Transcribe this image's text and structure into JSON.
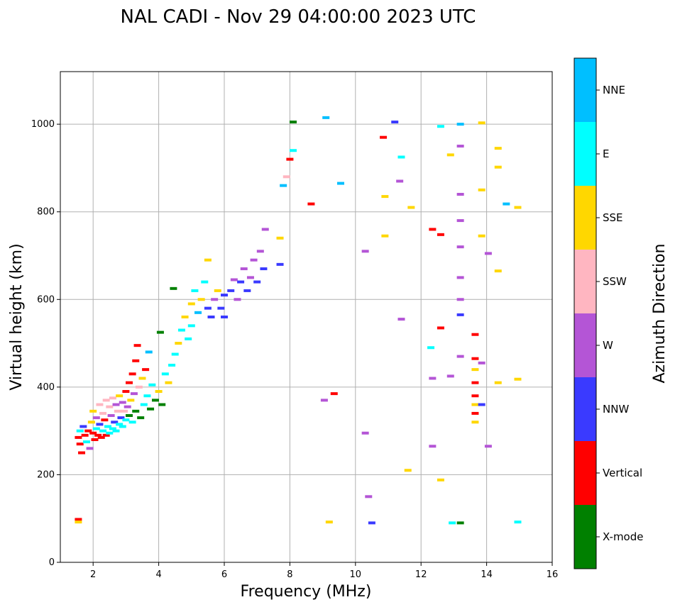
{
  "chart_data": {
    "type": "scatter",
    "title": "NAL CADI - Nov 29 04:00:00 2023 UTC",
    "xlabel": "Frequency (MHz)",
    "ylabel": "Virtual height (km)",
    "xlim": [
      1,
      16
    ],
    "ylim": [
      0,
      1120
    ],
    "xticks": [
      2,
      4,
      6,
      8,
      10,
      12,
      14,
      16
    ],
    "yticks": [
      0,
      200,
      400,
      600,
      800,
      1000
    ],
    "grid": true,
    "colorbar": {
      "title": "Azimuth Direction",
      "categories": [
        {
          "name": "X-mode",
          "color": "#008000"
        },
        {
          "name": "Vertical",
          "color": "#ff0000"
        },
        {
          "name": "NNW",
          "color": "#3a3aff"
        },
        {
          "name": "W",
          "color": "#b455d6"
        },
        {
          "name": "SSW",
          "color": "#ffb6c1"
        },
        {
          "name": "SSE",
          "color": "#ffd700"
        },
        {
          "name": "E",
          "color": "#00ffff"
        },
        {
          "name": "NNE",
          "color": "#00bfff"
        }
      ]
    },
    "points": [
      {
        "x": 1.55,
        "y": 98,
        "c": "Vertical"
      },
      {
        "x": 1.55,
        "y": 92,
        "c": "SSE"
      },
      {
        "x": 1.55,
        "y": 285,
        "c": "Vertical"
      },
      {
        "x": 1.6,
        "y": 300,
        "c": "E"
      },
      {
        "x": 1.6,
        "y": 270,
        "c": "Vertical"
      },
      {
        "x": 1.65,
        "y": 250,
        "c": "Vertical"
      },
      {
        "x": 1.7,
        "y": 310,
        "c": "NNW"
      },
      {
        "x": 1.75,
        "y": 290,
        "c": "Vertical"
      },
      {
        "x": 1.8,
        "y": 275,
        "c": "E"
      },
      {
        "x": 1.85,
        "y": 300,
        "c": "Vertical"
      },
      {
        "x": 1.9,
        "y": 260,
        "c": "W"
      },
      {
        "x": 1.95,
        "y": 320,
        "c": "SSE"
      },
      {
        "x": 2.0,
        "y": 295,
        "c": "Vertical"
      },
      {
        "x": 2.0,
        "y": 345,
        "c": "SSE"
      },
      {
        "x": 2.05,
        "y": 280,
        "c": "Vertical"
      },
      {
        "x": 2.1,
        "y": 330,
        "c": "W"
      },
      {
        "x": 2.1,
        "y": 305,
        "c": "E"
      },
      {
        "x": 2.15,
        "y": 290,
        "c": "Vertical"
      },
      {
        "x": 2.2,
        "y": 360,
        "c": "SSW"
      },
      {
        "x": 2.2,
        "y": 315,
        "c": "NNW"
      },
      {
        "x": 2.25,
        "y": 285,
        "c": "Vertical"
      },
      {
        "x": 2.3,
        "y": 340,
        "c": "SSW"
      },
      {
        "x": 2.3,
        "y": 300,
        "c": "E"
      },
      {
        "x": 2.35,
        "y": 325,
        "c": "Vertical"
      },
      {
        "x": 2.4,
        "y": 370,
        "c": "SSW"
      },
      {
        "x": 2.4,
        "y": 290,
        "c": "Vertical"
      },
      {
        "x": 2.45,
        "y": 310,
        "c": "E"
      },
      {
        "x": 2.5,
        "y": 355,
        "c": "SSW"
      },
      {
        "x": 2.5,
        "y": 295,
        "c": "E"
      },
      {
        "x": 2.55,
        "y": 335,
        "c": "W"
      },
      {
        "x": 2.6,
        "y": 375,
        "c": "SSW"
      },
      {
        "x": 2.6,
        "y": 305,
        "c": "E"
      },
      {
        "x": 2.65,
        "y": 320,
        "c": "NNW"
      },
      {
        "x": 2.7,
        "y": 360,
        "c": "W"
      },
      {
        "x": 2.7,
        "y": 300,
        "c": "E"
      },
      {
        "x": 2.75,
        "y": 345,
        "c": "SSW"
      },
      {
        "x": 2.8,
        "y": 380,
        "c": "SSE"
      },
      {
        "x": 2.8,
        "y": 315,
        "c": "E"
      },
      {
        "x": 2.85,
        "y": 330,
        "c": "NNW"
      },
      {
        "x": 2.9,
        "y": 365,
        "c": "W"
      },
      {
        "x": 2.9,
        "y": 310,
        "c": "E"
      },
      {
        "x": 2.95,
        "y": 345,
        "c": "SSW"
      },
      {
        "x": 3.0,
        "y": 390,
        "c": "Vertical"
      },
      {
        "x": 3.0,
        "y": 325,
        "c": "E"
      },
      {
        "x": 3.05,
        "y": 355,
        "c": "W"
      },
      {
        "x": 3.1,
        "y": 410,
        "c": "Vertical"
      },
      {
        "x": 3.1,
        "y": 335,
        "c": "X-mode"
      },
      {
        "x": 3.15,
        "y": 370,
        "c": "SSE"
      },
      {
        "x": 3.2,
        "y": 430,
        "c": "Vertical"
      },
      {
        "x": 3.2,
        "y": 320,
        "c": "E"
      },
      {
        "x": 3.25,
        "y": 385,
        "c": "W"
      },
      {
        "x": 3.3,
        "y": 460,
        "c": "Vertical"
      },
      {
        "x": 3.3,
        "y": 345,
        "c": "X-mode"
      },
      {
        "x": 3.35,
        "y": 495,
        "c": "Vertical"
      },
      {
        "x": 3.4,
        "y": 400,
        "c": "SSW"
      },
      {
        "x": 3.45,
        "y": 330,
        "c": "X-mode"
      },
      {
        "x": 3.5,
        "y": 420,
        "c": "SSE"
      },
      {
        "x": 3.55,
        "y": 360,
        "c": "E"
      },
      {
        "x": 3.6,
        "y": 440,
        "c": "Vertical"
      },
      {
        "x": 3.65,
        "y": 380,
        "c": "E"
      },
      {
        "x": 3.7,
        "y": 480,
        "c": "NNE"
      },
      {
        "x": 3.75,
        "y": 350,
        "c": "X-mode"
      },
      {
        "x": 3.8,
        "y": 405,
        "c": "E"
      },
      {
        "x": 3.9,
        "y": 370,
        "c": "X-mode"
      },
      {
        "x": 4.0,
        "y": 390,
        "c": "SSE"
      },
      {
        "x": 4.05,
        "y": 525,
        "c": "X-mode"
      },
      {
        "x": 4.1,
        "y": 360,
        "c": "X-mode"
      },
      {
        "x": 4.2,
        "y": 430,
        "c": "E"
      },
      {
        "x": 4.3,
        "y": 410,
        "c": "SSE"
      },
      {
        "x": 4.4,
        "y": 450,
        "c": "E"
      },
      {
        "x": 4.45,
        "y": 625,
        "c": "X-mode"
      },
      {
        "x": 4.5,
        "y": 475,
        "c": "E"
      },
      {
        "x": 4.6,
        "y": 500,
        "c": "SSE"
      },
      {
        "x": 4.7,
        "y": 530,
        "c": "E"
      },
      {
        "x": 4.8,
        "y": 560,
        "c": "SSE"
      },
      {
        "x": 4.9,
        "y": 510,
        "c": "E"
      },
      {
        "x": 5.0,
        "y": 590,
        "c": "SSE"
      },
      {
        "x": 5.0,
        "y": 540,
        "c": "E"
      },
      {
        "x": 5.1,
        "y": 620,
        "c": "E"
      },
      {
        "x": 5.2,
        "y": 570,
        "c": "NNE"
      },
      {
        "x": 5.3,
        "y": 600,
        "c": "SSE"
      },
      {
        "x": 5.4,
        "y": 640,
        "c": "E"
      },
      {
        "x": 5.5,
        "y": 580,
        "c": "NNW"
      },
      {
        "x": 5.5,
        "y": 690,
        "c": "SSE"
      },
      {
        "x": 5.6,
        "y": 560,
        "c": "NNW"
      },
      {
        "x": 5.7,
        "y": 600,
        "c": "W"
      },
      {
        "x": 5.8,
        "y": 620,
        "c": "SSE"
      },
      {
        "x": 5.9,
        "y": 580,
        "c": "NNW"
      },
      {
        "x": 6.0,
        "y": 610,
        "c": "NNW"
      },
      {
        "x": 6.0,
        "y": 560,
        "c": "NNW"
      },
      {
        "x": 6.2,
        "y": 620,
        "c": "NNW"
      },
      {
        "x": 6.3,
        "y": 645,
        "c": "W"
      },
      {
        "x": 6.4,
        "y": 600,
        "c": "W"
      },
      {
        "x": 6.5,
        "y": 640,
        "c": "NNW"
      },
      {
        "x": 6.6,
        "y": 670,
        "c": "W"
      },
      {
        "x": 6.7,
        "y": 620,
        "c": "NNW"
      },
      {
        "x": 6.8,
        "y": 650,
        "c": "W"
      },
      {
        "x": 6.9,
        "y": 690,
        "c": "W"
      },
      {
        "x": 7.0,
        "y": 640,
        "c": "NNW"
      },
      {
        "x": 7.1,
        "y": 710,
        "c": "W"
      },
      {
        "x": 7.2,
        "y": 670,
        "c": "NNW"
      },
      {
        "x": 7.25,
        "y": 760,
        "c": "W"
      },
      {
        "x": 7.7,
        "y": 680,
        "c": "NNW"
      },
      {
        "x": 7.7,
        "y": 740,
        "c": "SSE"
      },
      {
        "x": 7.8,
        "y": 860,
        "c": "NNE"
      },
      {
        "x": 7.9,
        "y": 880,
        "c": "SSW"
      },
      {
        "x": 8.0,
        "y": 920,
        "c": "Vertical"
      },
      {
        "x": 8.1,
        "y": 1005,
        "c": "X-mode"
      },
      {
        "x": 8.1,
        "y": 940,
        "c": "E"
      },
      {
        "x": 8.65,
        "y": 818,
        "c": "Vertical"
      },
      {
        "x": 9.1,
        "y": 1015,
        "c": "NNE"
      },
      {
        "x": 9.05,
        "y": 370,
        "c": "W"
      },
      {
        "x": 9.2,
        "y": 92,
        "c": "SSE"
      },
      {
        "x": 9.35,
        "y": 385,
        "c": "Vertical"
      },
      {
        "x": 9.55,
        "y": 865,
        "c": "NNE"
      },
      {
        "x": 10.3,
        "y": 710,
        "c": "W"
      },
      {
        "x": 10.3,
        "y": 295,
        "c": "W"
      },
      {
        "x": 10.4,
        "y": 150,
        "c": "W"
      },
      {
        "x": 10.5,
        "y": 90,
        "c": "NNW"
      },
      {
        "x": 10.85,
        "y": 970,
        "c": "Vertical"
      },
      {
        "x": 10.9,
        "y": 835,
        "c": "SSE"
      },
      {
        "x": 10.9,
        "y": 745,
        "c": "SSE"
      },
      {
        "x": 11.2,
        "y": 1005,
        "c": "NNW"
      },
      {
        "x": 11.35,
        "y": 870,
        "c": "W"
      },
      {
        "x": 11.4,
        "y": 925,
        "c": "E"
      },
      {
        "x": 11.4,
        "y": 555,
        "c": "W"
      },
      {
        "x": 11.6,
        "y": 210,
        "c": "SSE"
      },
      {
        "x": 11.7,
        "y": 810,
        "c": "SSE"
      },
      {
        "x": 12.3,
        "y": 490,
        "c": "E"
      },
      {
        "x": 12.35,
        "y": 760,
        "c": "Vertical"
      },
      {
        "x": 12.35,
        "y": 420,
        "c": "W"
      },
      {
        "x": 12.35,
        "y": 265,
        "c": "W"
      },
      {
        "x": 12.6,
        "y": 995,
        "c": "E"
      },
      {
        "x": 12.6,
        "y": 748,
        "c": "Vertical"
      },
      {
        "x": 12.6,
        "y": 535,
        "c": "Vertical"
      },
      {
        "x": 12.6,
        "y": 188,
        "c": "SSE"
      },
      {
        "x": 12.9,
        "y": 930,
        "c": "SSE"
      },
      {
        "x": 12.9,
        "y": 425,
        "c": "W"
      },
      {
        "x": 12.95,
        "y": 90,
        "c": "E"
      },
      {
        "x": 13.2,
        "y": 1000,
        "c": "NNE"
      },
      {
        "x": 13.2,
        "y": 950,
        "c": "W"
      },
      {
        "x": 13.2,
        "y": 840,
        "c": "W"
      },
      {
        "x": 13.2,
        "y": 780,
        "c": "W"
      },
      {
        "x": 13.2,
        "y": 720,
        "c": "W"
      },
      {
        "x": 13.2,
        "y": 650,
        "c": "W"
      },
      {
        "x": 13.2,
        "y": 600,
        "c": "W"
      },
      {
        "x": 13.2,
        "y": 565,
        "c": "NNW"
      },
      {
        "x": 13.2,
        "y": 470,
        "c": "W"
      },
      {
        "x": 13.2,
        "y": 90,
        "c": "X-mode"
      },
      {
        "x": 13.65,
        "y": 520,
        "c": "Vertical"
      },
      {
        "x": 13.65,
        "y": 465,
        "c": "Vertical"
      },
      {
        "x": 13.65,
        "y": 440,
        "c": "SSE"
      },
      {
        "x": 13.65,
        "y": 410,
        "c": "Vertical"
      },
      {
        "x": 13.65,
        "y": 380,
        "c": "Vertical"
      },
      {
        "x": 13.65,
        "y": 360,
        "c": "SSE"
      },
      {
        "x": 13.65,
        "y": 340,
        "c": "Vertical"
      },
      {
        "x": 13.65,
        "y": 320,
        "c": "SSE"
      },
      {
        "x": 13.85,
        "y": 1003,
        "c": "SSE"
      },
      {
        "x": 13.85,
        "y": 850,
        "c": "SSE"
      },
      {
        "x": 13.85,
        "y": 745,
        "c": "SSE"
      },
      {
        "x": 13.85,
        "y": 455,
        "c": "W"
      },
      {
        "x": 13.85,
        "y": 360,
        "c": "NNW"
      },
      {
        "x": 14.05,
        "y": 705,
        "c": "W"
      },
      {
        "x": 14.05,
        "y": 265,
        "c": "W"
      },
      {
        "x": 14.35,
        "y": 945,
        "c": "SSE"
      },
      {
        "x": 14.35,
        "y": 902,
        "c": "SSE"
      },
      {
        "x": 14.35,
        "y": 665,
        "c": "SSE"
      },
      {
        "x": 14.35,
        "y": 410,
        "c": "SSE"
      },
      {
        "x": 14.6,
        "y": 818,
        "c": "NNE"
      },
      {
        "x": 14.95,
        "y": 418,
        "c": "SSE"
      },
      {
        "x": 14.95,
        "y": 92,
        "c": "E"
      },
      {
        "x": 14.95,
        "y": 810,
        "c": "SSE"
      }
    ]
  }
}
